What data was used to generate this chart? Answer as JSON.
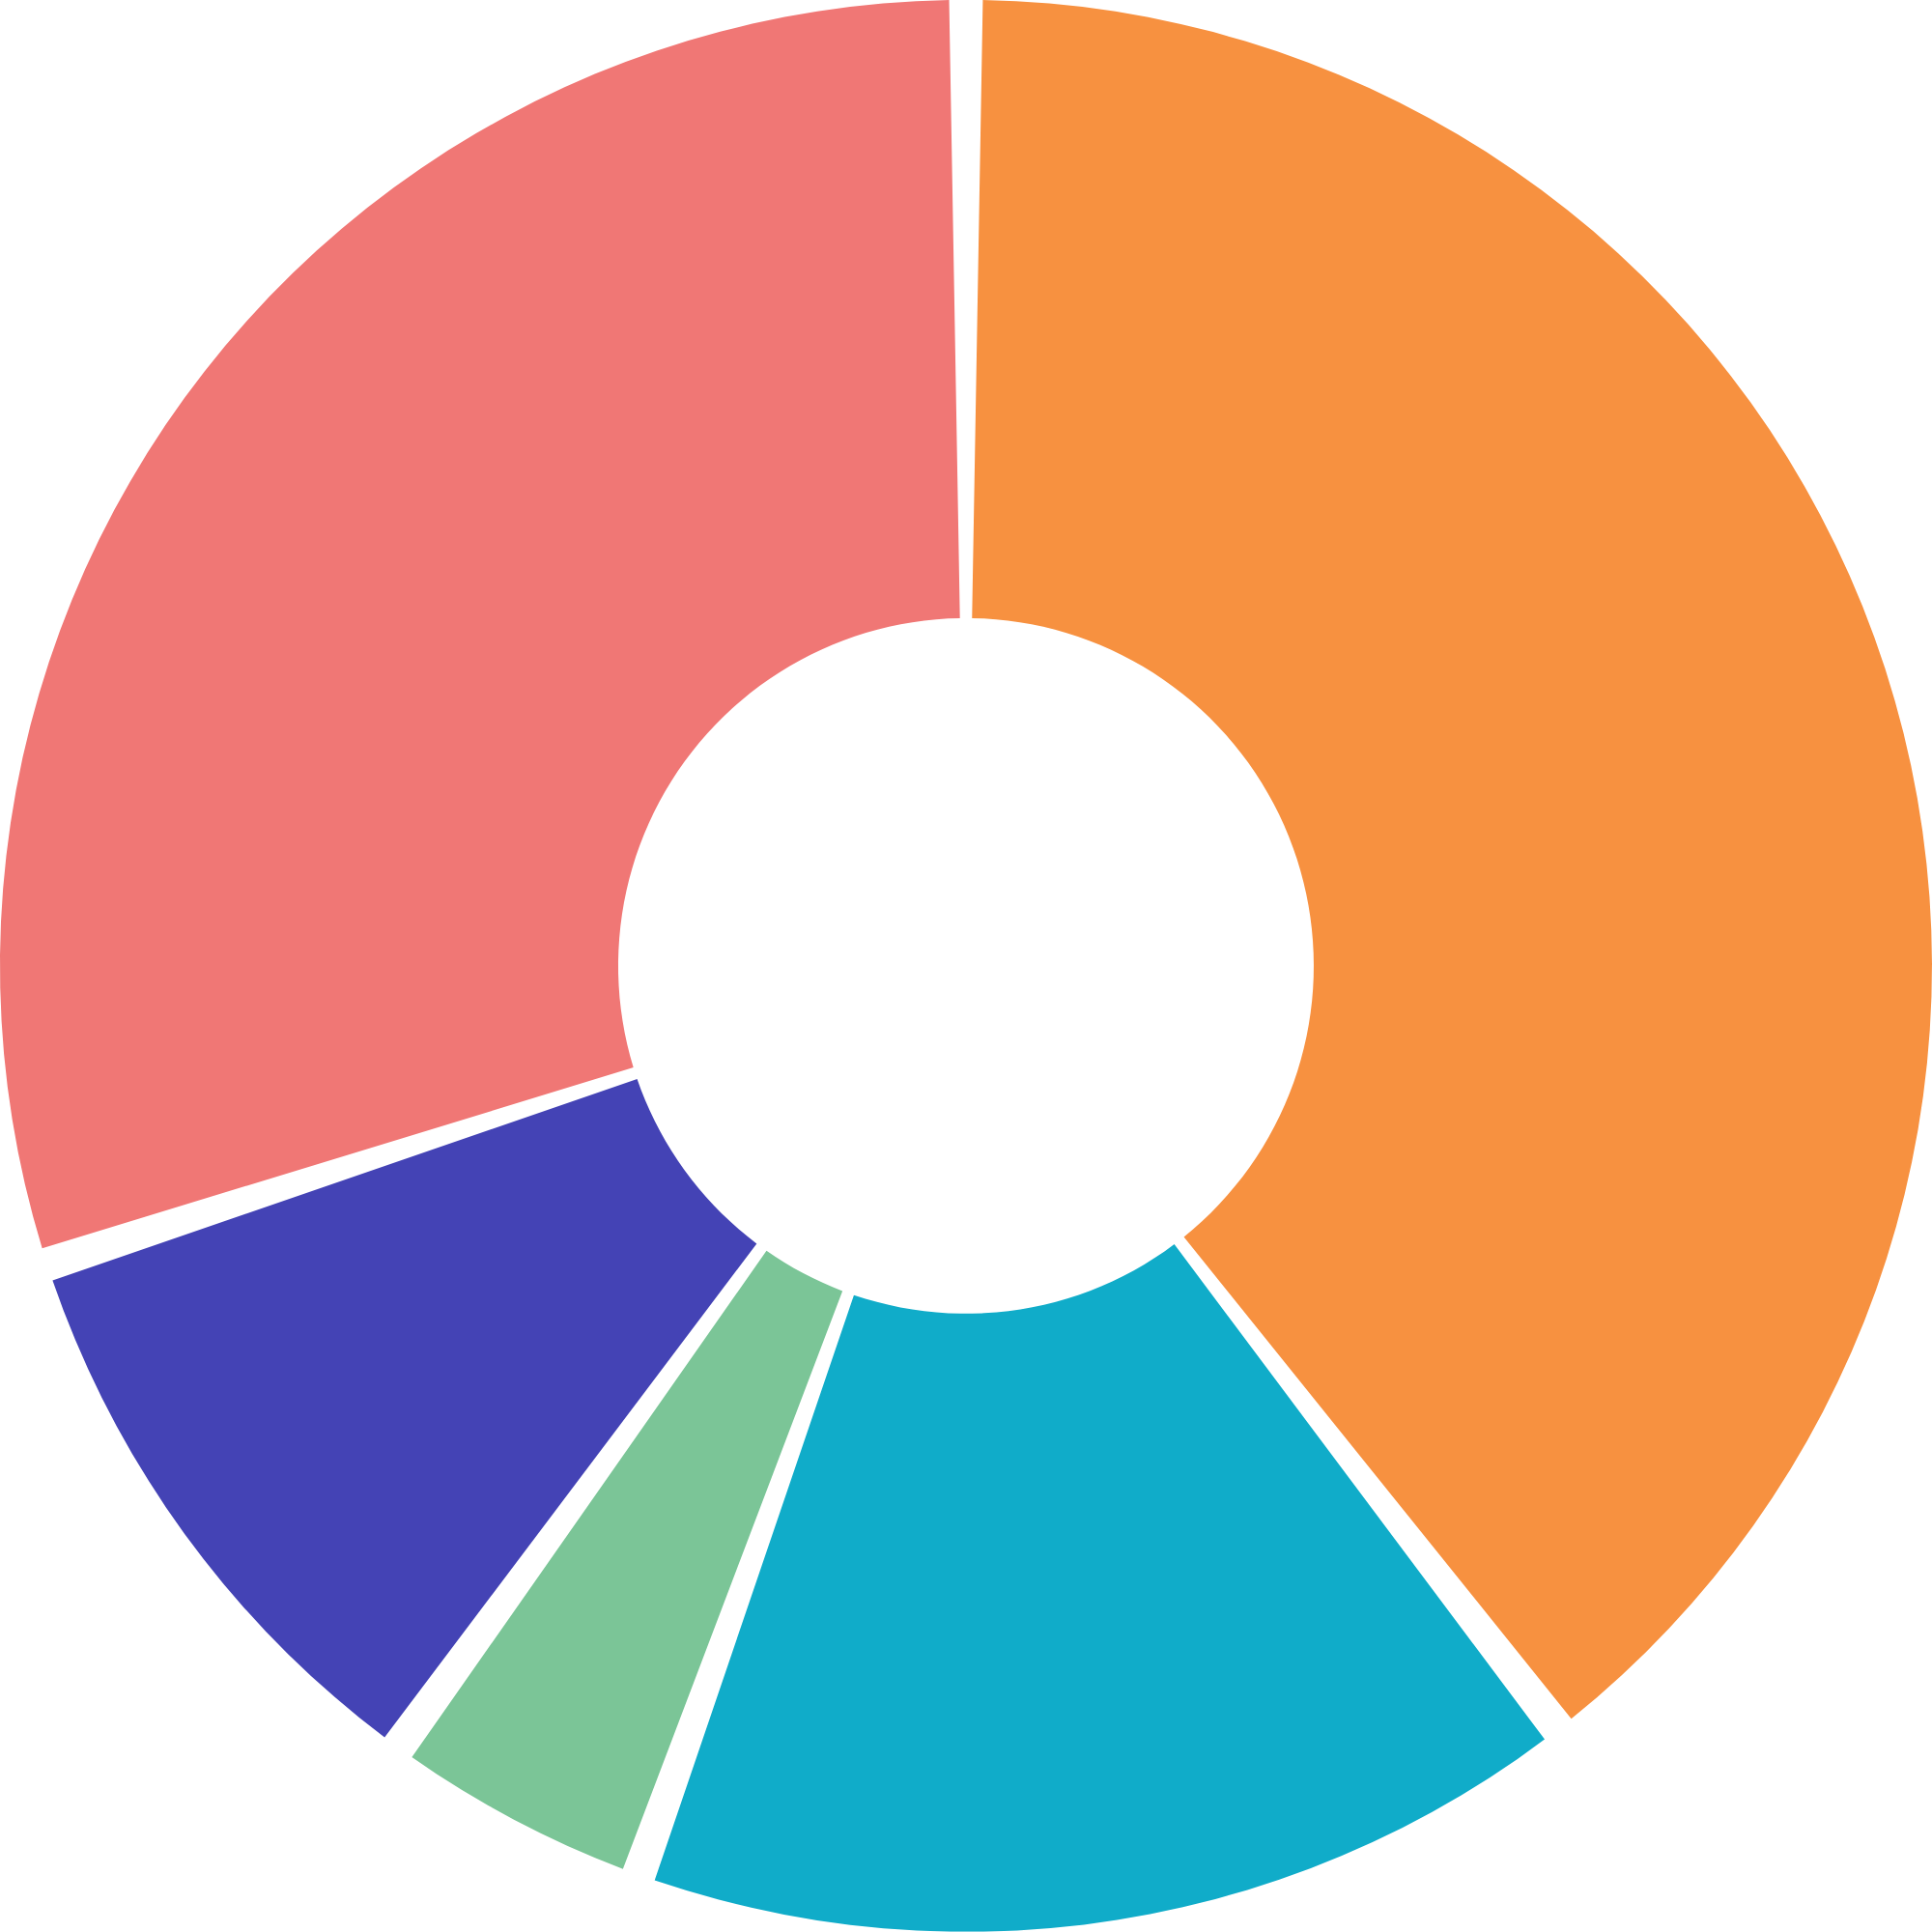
{
  "chart_data": {
    "type": "donut",
    "categories": [
      null,
      null,
      null,
      null,
      null
    ],
    "values": [
      39.5,
      16,
      4.5,
      10,
      30
    ],
    "colors": [
      "#f79140",
      "#10acc9",
      "#7bc597",
      "#4443b5",
      "#f07775"
    ]
  }
}
